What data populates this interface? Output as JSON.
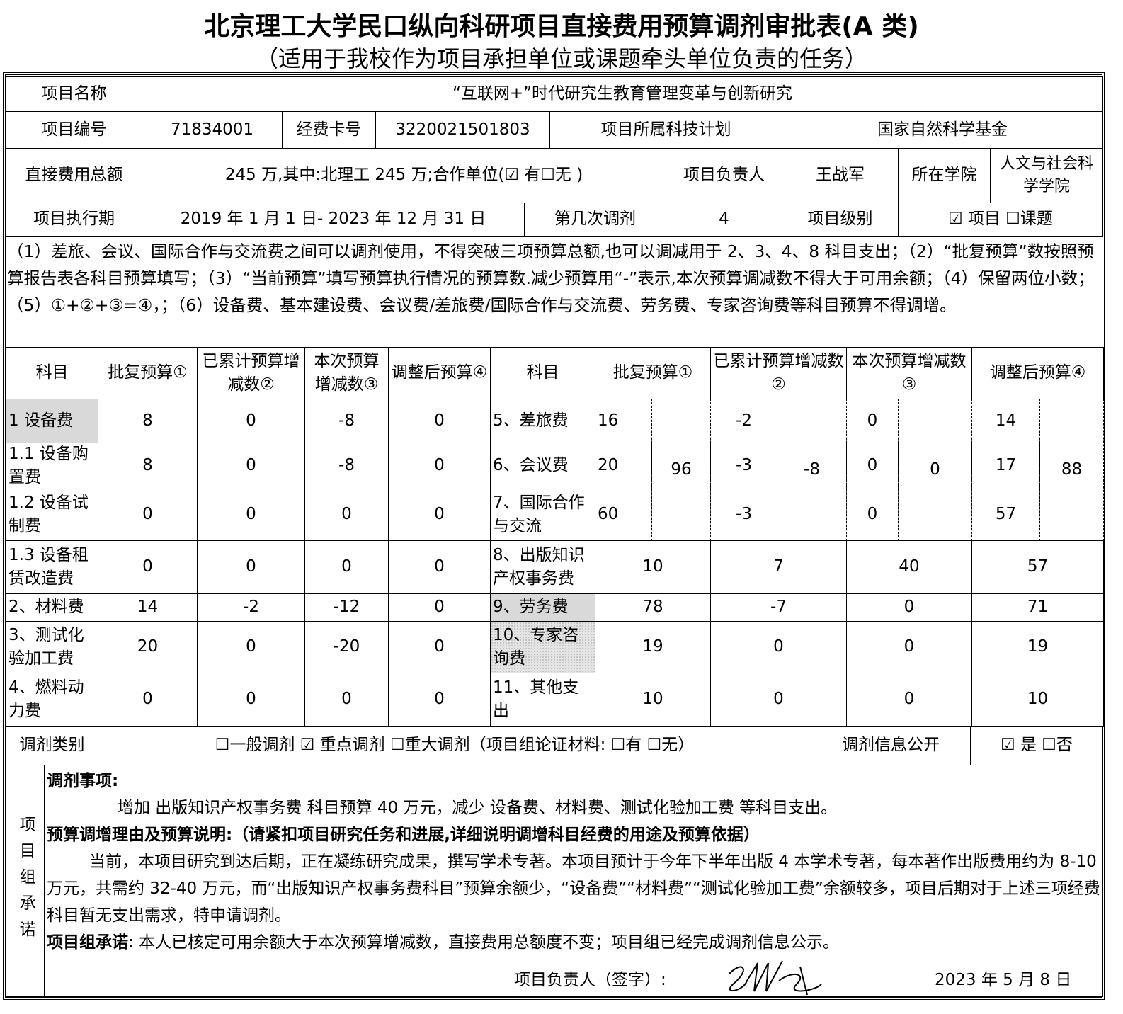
{
  "title": "北京理工大学民口纵向科研项目直接费用预算调剂审批表(A 类)",
  "subtitle": "（适用于我校作为项目承担单位或课题牵头单位负责的任务）",
  "info": {
    "name_label": "项目名称",
    "name": "“互联网+”时代研究生教育管理变革与创新研究",
    "code_label": "项目编号",
    "code": "71834001",
    "card_label": "经费卡号",
    "card": "3220021501803",
    "plan_label": "项目所属科技计划",
    "plan": "国家自然科学基金",
    "total_label": "直接费用总额",
    "total": "245 万,其中:北理工  245 万;合作单位(☑ 有☐无 )",
    "leader_label": "项目负责人",
    "leader": "王战军",
    "college_label": "所在学院",
    "college": "人文与社会科学学院",
    "period_label": "项目执行期",
    "period": "2019 年 1 月 1 日- 2023 年 12 月 31 日",
    "round_label": "第几次调剂",
    "round": "4",
    "level_label": "项目级别",
    "level": "☑ 项目  ☐课题"
  },
  "notes": "（1）差旅、会议、国际合作与交流费之间可以调剂使用，不得突破三项预算总额,也可以调减用于 2、3、4、8 科目支出；（2）“批复预算”数按照预算报告表各科目预算填写；（3）“当前预算”填写预算执行情况的预算数.减少预算用“-”表示,本次预算调减数不得大于可用余额；（4）保留两位小数；（5）①+②+③=④，；（6）设备费、基本建设费、会议费/差旅费/国际合作与交流费、劳务费、专家咨询费等科目预算不得调增。",
  "budget": {
    "headers_left": [
      "科目",
      "批复预算①",
      "已累计预算增减数②",
      "本次预算增减数③",
      "调整后预算④"
    ],
    "headers_right": [
      "科目",
      "批复预算①",
      "已累计预算增减数②",
      "本次预算增减数③",
      "调整后预算④"
    ],
    "left_rows": [
      [
        "1 设备费",
        "8",
        "0",
        "-8",
        "0"
      ],
      [
        "1.1 设备购置费",
        "8",
        "0",
        "-8",
        "0"
      ],
      [
        "1.2 设备试制费",
        "0",
        "0",
        "0",
        "0"
      ],
      [
        "1.3 设备租赁改造费",
        "0",
        "0",
        "0",
        "0"
      ],
      [
        "2、材料费",
        "14",
        "-2",
        "-12",
        "0"
      ],
      [
        "3、测试化验加工费",
        "20",
        "0",
        "-20",
        "0"
      ],
      [
        "4、燃料动力费",
        "0",
        "0",
        "0",
        "0"
      ]
    ],
    "group_rows": [
      [
        "5、差旅费",
        "16",
        "-2",
        "0",
        "14"
      ],
      [
        "6、会议费",
        "20",
        "-3",
        "0",
        "17"
      ],
      [
        "7、国际合作与交流",
        "60",
        "-3",
        "0",
        "57"
      ]
    ],
    "group_totals": [
      "96",
      "-8",
      "0",
      "88"
    ],
    "right_rows": [
      [
        "8、出版知识产权事务费",
        "10",
        "7",
        "40",
        "57"
      ],
      [
        "9、劳务费",
        "78",
        "-7",
        "0",
        "71"
      ],
      [
        "10、专家咨询费",
        "19",
        "0",
        "0",
        "19"
      ],
      [
        "11、其他支出",
        "10",
        "0",
        "0",
        "10"
      ]
    ]
  },
  "adjust": {
    "type_label": "调剂类别",
    "type_options": "☐一般调剂 ☑ 重点调剂 ☐重大调剂（项目组论证材料: ☐有 ☐无）",
    "public_label": "调剂信息公开",
    "public_options": "☑ 是 ☐否"
  },
  "commit": {
    "side_label": "项目组承诺",
    "item_title": "调剂事项:",
    "item_text": "增加 出版知识产权事务费 科目预算 40 万元，减少 设备费、材料费、测试化验加工费 等科目支出。",
    "reason_title": "预算调增理由及预算说明:（请紧扣项目研究任务和进展,详细说明调增科目经费的用途及预算依据）",
    "reason_text": "当前，本项目研究到达后期，正在凝练研究成果，撰写学术专著。本项目预计于今年下半年出版 4 本学术专著，每本著作出版费用约为 8-10 万元，共需约 32-40 万元，而“出版知识产权事务费科目”预算余额少，“设备费”“材料费”“测试化验加工费”余额较多，项目后期对于上述三项经费科目暂无支出需求，特申请调剂。",
    "promise_title": "项目组承诺",
    "promise_text": ": 本人已核定可用余额大于本次预算增减数，直接费用总额度不变；项目组已经完成调剂信息公示。",
    "sign_label": "项目负责人（签字）:",
    "date": "2023 年  5 月 8 日"
  }
}
